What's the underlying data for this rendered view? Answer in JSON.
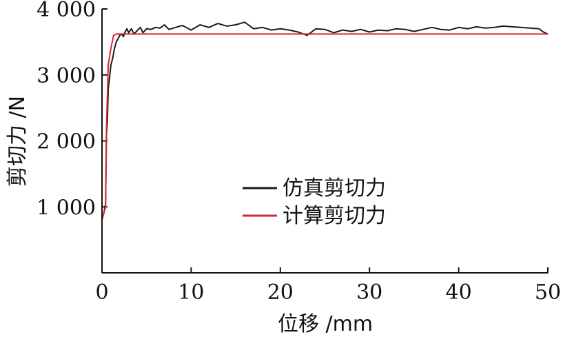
{
  "chart_data": {
    "type": "line",
    "xlabel": "位移 /mm",
    "ylabel": "剪切力 /N",
    "xlim": [
      0,
      50
    ],
    "ylim": [
      0,
      4000
    ],
    "x_ticks": [
      0,
      10,
      20,
      30,
      40,
      50
    ],
    "x_tick_labels": [
      "0",
      "10",
      "20",
      "30",
      "40",
      "50"
    ],
    "y_ticks": [
      1000,
      2000,
      3000,
      4000
    ],
    "y_tick_labels": [
      "1 000",
      "2 000",
      "3 000",
      "4 000"
    ],
    "grid": false,
    "legend_position": "center-right",
    "series": [
      {
        "name": "仿真剪切力",
        "color": "#1a1a1a",
        "x": [
          0.0,
          0.2,
          0.4,
          0.5,
          0.6,
          0.7,
          0.8,
          1.0,
          1.2,
          1.4,
          1.6,
          1.8,
          2.0,
          2.2,
          2.4,
          2.6,
          2.8,
          3.0,
          3.3,
          3.6,
          4.0,
          4.3,
          4.6,
          5.0,
          5.5,
          6.0,
          6.5,
          7.0,
          7.5,
          8.0,
          9.0,
          10.0,
          11.0,
          12.0,
          13.0,
          14.0,
          15.0,
          16.0,
          17.0,
          18.0,
          19.0,
          20.0,
          21.0,
          22.0,
          23.0,
          24.0,
          25.0,
          26.0,
          27.0,
          28.0,
          29.0,
          30.0,
          31.0,
          32.0,
          33.0,
          34.0,
          35.0,
          36.0,
          37.0,
          38.0,
          39.0,
          40.0,
          41.0,
          42.0,
          43.0,
          44.0,
          45.0,
          46.0,
          47.0,
          48.0,
          49.0,
          49.5,
          50.0
        ],
        "y": [
          820,
          900,
          1050,
          2100,
          2300,
          2800,
          2900,
          3150,
          3250,
          3400,
          3500,
          3550,
          3600,
          3620,
          3580,
          3650,
          3700,
          3640,
          3700,
          3620,
          3680,
          3720,
          3640,
          3700,
          3690,
          3720,
          3710,
          3760,
          3690,
          3710,
          3750,
          3680,
          3760,
          3720,
          3780,
          3740,
          3760,
          3800,
          3700,
          3720,
          3680,
          3700,
          3680,
          3650,
          3600,
          3700,
          3690,
          3640,
          3680,
          3660,
          3690,
          3650,
          3680,
          3670,
          3700,
          3690,
          3660,
          3690,
          3720,
          3690,
          3680,
          3720,
          3700,
          3730,
          3710,
          3720,
          3740,
          3730,
          3720,
          3710,
          3700,
          3650,
          3620
        ]
      },
      {
        "name": "计算剪切力",
        "color": "#d8262e",
        "x": [
          0.0,
          0.4,
          0.5,
          0.7,
          1.0,
          1.3,
          1.6,
          50.0
        ],
        "y": [
          800,
          1000,
          2200,
          3150,
          3400,
          3600,
          3620,
          3620
        ]
      }
    ]
  }
}
